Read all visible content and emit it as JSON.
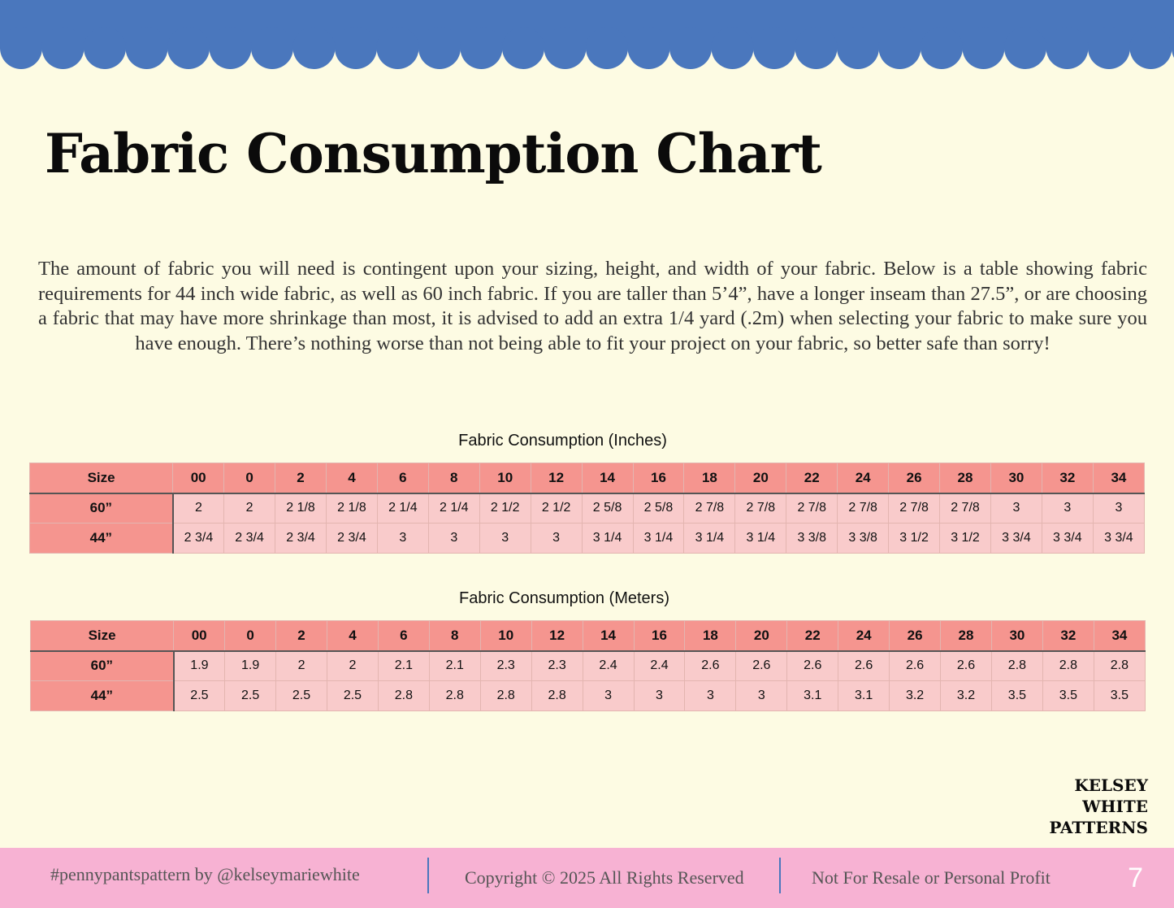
{
  "title": "Fabric Consumption Chart",
  "intro": "The amount of fabric you will need is contingent upon your sizing, height, and width of your fabric.  Below is a table showing fabric requirements for 44 inch wide fabric, as well as 60 inch fabric.  If you are taller than 5’4”, have a longer inseam than 27.5”, or are choosing a fabric that may have more shrinkage than most, it is advised to add an extra 1/4 yard (.2m) when selecting your fabric to make sure you have enough.  There’s nothing worse than not being able to fit your project on your fabric, so better safe than sorry!",
  "colors": {
    "background": "#fdfbe3",
    "scallop": "#4a77bd",
    "header_cell": "#f5958f",
    "body_cell": "#f9cbcb",
    "footer": "#f7b2d3",
    "divider": "#4a77bd"
  },
  "tables": [
    {
      "caption": "Fabric Consumption (Inches)",
      "corner": "Size",
      "sizes": [
        "00",
        "0",
        "2",
        "4",
        "6",
        "8",
        "10",
        "12",
        "14",
        "16",
        "18",
        "20",
        "22",
        "24",
        "26",
        "28",
        "30",
        "32",
        "34"
      ],
      "rows": [
        {
          "label": "60”",
          "values": [
            "2",
            "2",
            "2 1/8",
            "2 1/8",
            "2 1/4",
            "2 1/4",
            "2 1/2",
            "2 1/2",
            "2 5/8",
            "2 5/8",
            "2 7/8",
            "2 7/8",
            "2 7/8",
            "2 7/8",
            "2 7/8",
            "2 7/8",
            "3",
            "3",
            "3"
          ]
        },
        {
          "label": "44”",
          "values": [
            "2 3/4",
            "2 3/4",
            "2 3/4",
            "2 3/4",
            "3",
            "3",
            "3",
            "3",
            "3 1/4",
            "3 1/4",
            "3 1/4",
            "3 1/4",
            "3 3/8",
            "3 3/8",
            "3 1/2",
            "3 1/2",
            "3 3/4",
            "3 3/4",
            "3 3/4"
          ]
        }
      ]
    },
    {
      "caption": "Fabric Consumption (Meters)",
      "corner": "Size",
      "sizes": [
        "00",
        "0",
        "2",
        "4",
        "6",
        "8",
        "10",
        "12",
        "14",
        "16",
        "18",
        "20",
        "22",
        "24",
        "26",
        "28",
        "30",
        "32",
        "34"
      ],
      "rows": [
        {
          "label": "60”",
          "values": [
            "1.9",
            "1.9",
            "2",
            "2",
            "2.1",
            "2.1",
            "2.3",
            "2.3",
            "2.4",
            "2.4",
            "2.6",
            "2.6",
            "2.6",
            "2.6",
            "2.6",
            "2.6",
            "2.8",
            "2.8",
            "2.8"
          ]
        },
        {
          "label": "44”",
          "values": [
            "2.5",
            "2.5",
            "2.5",
            "2.5",
            "2.8",
            "2.8",
            "2.8",
            "2.8",
            "3",
            "3",
            "3",
            "3",
            "3.1",
            "3.1",
            "3.2",
            "3.2",
            "3.5",
            "3.5",
            "3.5"
          ]
        }
      ]
    }
  ],
  "brand": {
    "line1": "KELSEY",
    "line2": "WHITE",
    "line3": "PATTERNS"
  },
  "footer": {
    "hashtag": "#pennypantspattern by @kelseymariewhite",
    "copyright": "Copyright © 2025 All Rights Reserved",
    "notice": "Not For Resale or Personal Profit",
    "page_number": "7"
  }
}
